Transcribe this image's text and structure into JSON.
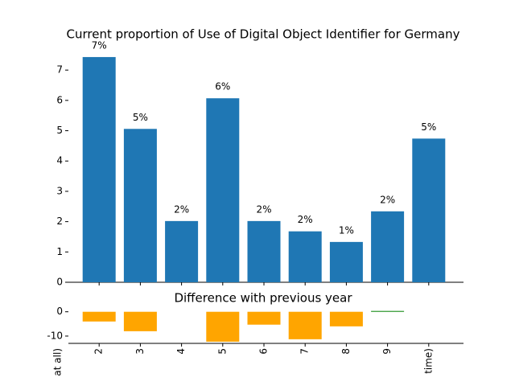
{
  "chart_data": [
    {
      "type": "bar",
      "title": "Current proportion of Use of Digital Object Identifier for Germany",
      "values": [
        7.43,
        5.06,
        2.02,
        6.07,
        2.02,
        1.68,
        1.33,
        2.34,
        4.74
      ],
      "value_labels": [
        "7%",
        "5%",
        "2%",
        "6%",
        "2%",
        "2%",
        "1%",
        "2%",
        "5%"
      ],
      "color": "#1f77b4",
      "ylim": [
        0,
        7.8
      ],
      "yticks": [
        0,
        1,
        2,
        3,
        4,
        5,
        6,
        7
      ]
    },
    {
      "type": "bar",
      "title": "Difference with previous year",
      "categories": [
        "at all)",
        "2",
        "3",
        "4",
        "5",
        "6",
        "7",
        "8",
        "9",
        "time)"
      ],
      "values": [
        null,
        -4,
        -8,
        0,
        -12.3,
        -5.3,
        -11.3,
        -6,
        0.3,
        0
      ],
      "negative_color": "#ffa500",
      "positive_color": "#008000",
      "ylim": [
        -13,
        8.5
      ],
      "yticks": [
        0,
        -10
      ]
    }
  ]
}
